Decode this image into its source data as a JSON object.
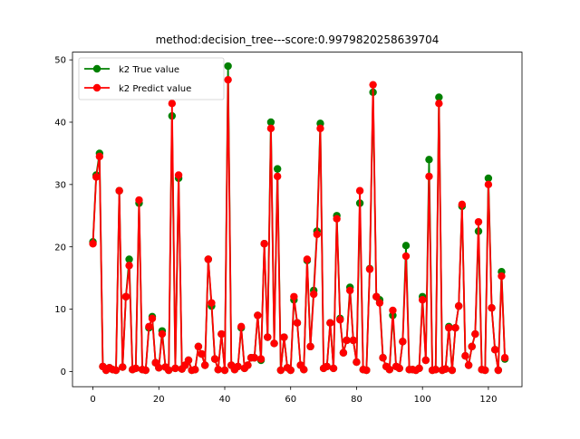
{
  "chart_data": {
    "type": "line",
    "title": "method:decision_tree---score:0.9979820258639704",
    "xlabel": "",
    "ylabel": "",
    "xlim": [
      -6.2,
      130.2
    ],
    "ylim": [
      -2.44,
      51.24
    ],
    "xticks": [
      0,
      20,
      40,
      60,
      80,
      100,
      120
    ],
    "yticks": [
      0,
      10,
      20,
      30,
      40,
      50
    ],
    "grid": false,
    "legend_position": "top-left",
    "series": [
      {
        "name": "k2 True value",
        "color": "#008000",
        "marker": "circle",
        "x": [
          0,
          1,
          2,
          3,
          4,
          5,
          6,
          7,
          8,
          9,
          10,
          11,
          12,
          13,
          14,
          15,
          16,
          17,
          18,
          19,
          20,
          21,
          22,
          23,
          24,
          25,
          26,
          27,
          28,
          29,
          30,
          31,
          32,
          33,
          34,
          35,
          36,
          37,
          38,
          39,
          40,
          41,
          42,
          43,
          44,
          45,
          46,
          47,
          48,
          49,
          50,
          51,
          52,
          53,
          54,
          55,
          56,
          57,
          58,
          59,
          60,
          61,
          62,
          63,
          64,
          65,
          66,
          67,
          68,
          69,
          70,
          71,
          72,
          73,
          74,
          75,
          76,
          77,
          78,
          79,
          80,
          81,
          82,
          83,
          84,
          85,
          86,
          87,
          88,
          89,
          90,
          91,
          92,
          93,
          94,
          95,
          96,
          97,
          98,
          99,
          100,
          101,
          102,
          103,
          104,
          105,
          106,
          107,
          108,
          109,
          110,
          111,
          112,
          113,
          114,
          115,
          116,
          117,
          118,
          119,
          120,
          121,
          122,
          123,
          124,
          125
        ],
        "values": [
          20.8,
          31.5,
          35.0,
          0.8,
          0.2,
          0.6,
          0.3,
          0.2,
          29.0,
          0.7,
          12.0,
          18.0,
          0.3,
          0.5,
          27.0,
          0.3,
          0.2,
          7.0,
          8.8,
          1.4,
          0.6,
          6.5,
          0.7,
          0.2,
          41.0,
          0.5,
          31.0,
          0.4,
          1.0,
          1.8,
          0.2,
          0.3,
          4.0,
          2.8,
          1.0,
          18.0,
          10.5,
          2.0,
          0.3,
          6.0,
          0.2,
          49.0,
          1.0,
          0.3,
          0.8,
          7.0,
          0.5,
          1.0,
          2.2,
          2.2,
          9.0,
          1.8,
          20.5,
          5.5,
          40.0,
          4.5,
          32.5,
          0.2,
          5.5,
          0.6,
          0.2,
          11.5,
          7.8,
          1.0,
          0.3,
          17.8,
          4.0,
          13.0,
          22.5,
          39.8,
          0.5,
          0.8,
          7.8,
          0.5,
          25.0,
          8.5,
          3.0,
          5.0,
          13.5,
          5.0,
          1.5,
          27.0,
          0.3,
          0.2,
          16.5,
          44.8,
          12.0,
          11.5,
          2.2,
          0.8,
          0.3,
          9.0,
          0.8,
          0.5,
          4.8,
          20.2,
          0.3,
          0.3,
          0.2,
          0.5,
          12.0,
          1.8,
          34.0,
          0.2,
          0.3,
          44.0,
          0.2,
          0.4,
          7.2,
          0.2,
          7.0,
          10.5,
          26.5,
          2.5,
          1.0,
          4.0,
          6.0,
          22.5,
          0.3,
          0.2,
          31.0,
          10.2,
          3.5,
          0.2,
          16.0,
          2.0
        ]
      },
      {
        "name": "k2 Predict value",
        "color": "#ff0000",
        "marker": "circle",
        "x": [
          0,
          1,
          2,
          3,
          4,
          5,
          6,
          7,
          8,
          9,
          10,
          11,
          12,
          13,
          14,
          15,
          16,
          17,
          18,
          19,
          20,
          21,
          22,
          23,
          24,
          25,
          26,
          27,
          28,
          29,
          30,
          31,
          32,
          33,
          34,
          35,
          36,
          37,
          38,
          39,
          40,
          41,
          42,
          43,
          44,
          45,
          46,
          47,
          48,
          49,
          50,
          51,
          52,
          53,
          54,
          55,
          56,
          57,
          58,
          59,
          60,
          61,
          62,
          63,
          64,
          65,
          66,
          67,
          68,
          69,
          70,
          71,
          72,
          73,
          74,
          75,
          76,
          77,
          78,
          79,
          80,
          81,
          82,
          83,
          84,
          85,
          86,
          87,
          88,
          89,
          90,
          91,
          92,
          93,
          94,
          95,
          96,
          97,
          98,
          99,
          100,
          101,
          102,
          103,
          104,
          105,
          106,
          107,
          108,
          109,
          110,
          111,
          112,
          113,
          114,
          115,
          116,
          117,
          118,
          119,
          120,
          121,
          122,
          123,
          124,
          125
        ],
        "values": [
          20.5,
          31.2,
          34.5,
          0.8,
          0.2,
          0.6,
          0.3,
          0.2,
          29.0,
          0.7,
          12.0,
          17.0,
          0.3,
          0.5,
          27.5,
          0.3,
          0.2,
          7.2,
          8.5,
          1.4,
          0.6,
          6.0,
          0.7,
          0.2,
          43.0,
          0.5,
          31.5,
          0.4,
          1.0,
          1.8,
          0.2,
          0.3,
          4.0,
          2.8,
          1.0,
          18.0,
          11.0,
          2.0,
          0.3,
          6.0,
          0.2,
          46.8,
          1.0,
          0.3,
          0.8,
          7.2,
          0.5,
          1.0,
          2.2,
          2.2,
          9.0,
          2.0,
          20.5,
          5.5,
          39.0,
          4.5,
          31.3,
          0.2,
          5.5,
          0.6,
          0.2,
          12.0,
          7.8,
          1.0,
          0.3,
          18.0,
          4.0,
          12.4,
          22.0,
          39.0,
          0.5,
          0.8,
          7.8,
          0.5,
          24.5,
          8.3,
          3.0,
          5.0,
          13.0,
          5.0,
          1.5,
          29.0,
          0.3,
          0.2,
          16.4,
          46.0,
          12.0,
          11.0,
          2.2,
          0.8,
          0.3,
          9.8,
          0.8,
          0.5,
          4.8,
          18.5,
          0.3,
          0.3,
          0.2,
          0.5,
          11.5,
          1.8,
          31.3,
          0.2,
          0.3,
          43.0,
          0.2,
          0.4,
          7.0,
          0.2,
          7.0,
          10.5,
          26.8,
          2.5,
          1.0,
          4.0,
          6.0,
          24.0,
          0.3,
          0.2,
          30.0,
          10.2,
          3.5,
          0.2,
          15.3,
          2.2
        ]
      }
    ]
  }
}
